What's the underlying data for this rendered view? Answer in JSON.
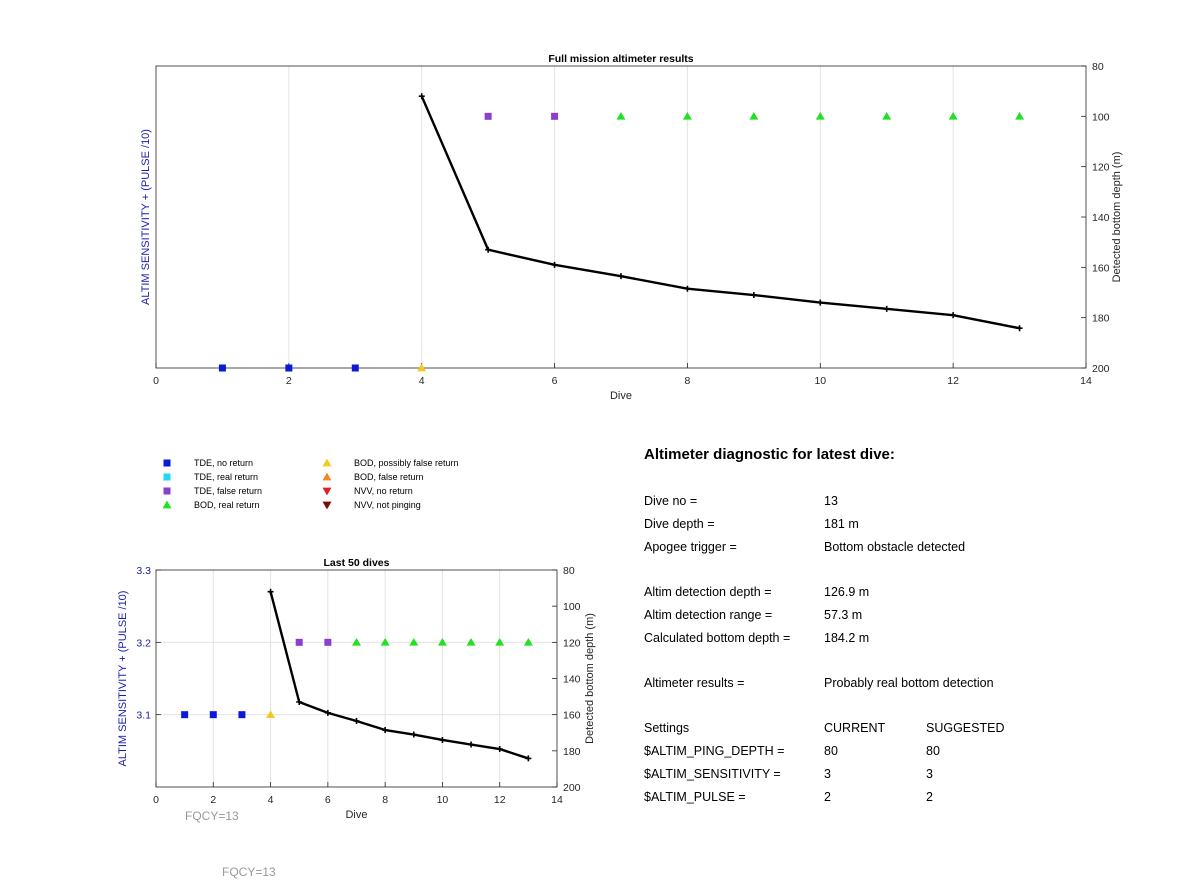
{
  "colors": {
    "tde_no_return": "#0a1ad6",
    "tde_real_return": "#22d8f0",
    "tde_false_return": "#8a3fd0",
    "bod_real_return": "#22e022",
    "bod_possibly_false": "#f4c81e",
    "bod_false_return": "#f08a1e",
    "nvv_no_return": "#e02020",
    "nvv_not_pinging": "#7a0a0a",
    "axis_left_label": "#1a1ab0",
    "line": "#000000"
  },
  "legend": [
    {
      "label": "TDE, no return",
      "shape": "square",
      "color_key": "tde_no_return"
    },
    {
      "label": "TDE, real return",
      "shape": "square",
      "color_key": "tde_real_return"
    },
    {
      "label": "TDE, false return",
      "shape": "square",
      "color_key": "tde_false_return"
    },
    {
      "label": "BOD, real return",
      "shape": "triangle-up",
      "color_key": "bod_real_return"
    },
    {
      "label": "BOD, possibly false return",
      "shape": "triangle-up",
      "color_key": "bod_possibly_false"
    },
    {
      "label": "BOD, false return",
      "shape": "triangle-up",
      "color_key": "bod_false_return"
    },
    {
      "label": "NVV, no return",
      "shape": "triangle-down",
      "color_key": "nvv_no_return"
    },
    {
      "label": "NVV, not pinging",
      "shape": "triangle-down",
      "color_key": "nvv_not_pinging"
    }
  ],
  "chart_data": [
    {
      "type": "line",
      "title": "Full mission altimeter results",
      "xlabel": "Dive",
      "ylabel_left": "ALTIM SENSITIVITY + (PULSE /10)",
      "ylabel_right": "Detected bottom depth (m)",
      "xlim": [
        0,
        14
      ],
      "xticks": [
        0,
        2,
        4,
        6,
        8,
        10,
        12,
        14
      ],
      "right_ylim": [
        80,
        200
      ],
      "right_y_reversed": true,
      "right_yticks": [
        80,
        100,
        120,
        140,
        160,
        180,
        200
      ],
      "left_yticks": [],
      "grid": "x",
      "depth_line": {
        "x": [
          4,
          5,
          6,
          7,
          8,
          9,
          10,
          11,
          12,
          13
        ],
        "y": [
          92,
          153,
          159,
          163.5,
          168.5,
          171,
          174,
          176.5,
          179,
          184.2
        ]
      },
      "status_markers": [
        {
          "x": 1,
          "depth": 200,
          "category": "tde_no_return"
        },
        {
          "x": 2,
          "depth": 200,
          "category": "tde_no_return"
        },
        {
          "x": 3,
          "depth": 200,
          "category": "tde_no_return"
        },
        {
          "x": 4,
          "depth": 200,
          "category": "bod_possibly_false"
        },
        {
          "x": 5,
          "depth": 100,
          "category": "tde_false_return"
        },
        {
          "x": 6,
          "depth": 100,
          "category": "tde_false_return"
        },
        {
          "x": 7,
          "depth": 100,
          "category": "bod_real_return"
        },
        {
          "x": 8,
          "depth": 100,
          "category": "bod_real_return"
        },
        {
          "x": 9,
          "depth": 100,
          "category": "bod_real_return"
        },
        {
          "x": 10,
          "depth": 100,
          "category": "bod_real_return"
        },
        {
          "x": 11,
          "depth": 100,
          "category": "bod_real_return"
        },
        {
          "x": 12,
          "depth": 100,
          "category": "bod_real_return"
        },
        {
          "x": 13,
          "depth": 100,
          "category": "bod_real_return"
        }
      ]
    },
    {
      "type": "line",
      "title": "Last 50 dives",
      "xlabel": "Dive",
      "ylabel_left": "ALTIM SENSITIVITY + (PULSE /10)",
      "ylabel_right": "Detected bottom depth (m)",
      "xlim": [
        0,
        14
      ],
      "xticks": [
        0,
        2,
        4,
        6,
        8,
        10,
        12,
        14
      ],
      "left_ylim": [
        3.0,
        3.3
      ],
      "left_yticks": [
        3.1,
        3.2,
        3.3
      ],
      "right_ylim": [
        80,
        200
      ],
      "right_y_reversed": true,
      "right_yticks": [
        80,
        100,
        120,
        140,
        160,
        180,
        200
      ],
      "grid": "both",
      "depth_line": {
        "x": [
          4,
          5,
          6,
          7,
          8,
          9,
          10,
          11,
          12,
          13
        ],
        "y": [
          92,
          153,
          159,
          163.5,
          168.5,
          171,
          174,
          176.5,
          179,
          184.2
        ]
      },
      "status_markers": [
        {
          "x": 1,
          "left_value": 3.1,
          "category": "tde_no_return"
        },
        {
          "x": 2,
          "left_value": 3.1,
          "category": "tde_no_return"
        },
        {
          "x": 3,
          "left_value": 3.1,
          "category": "tde_no_return"
        },
        {
          "x": 4,
          "left_value": 3.1,
          "category": "bod_possibly_false"
        },
        {
          "x": 5,
          "left_value": 3.2,
          "category": "tde_false_return"
        },
        {
          "x": 6,
          "left_value": 3.2,
          "category": "tde_false_return"
        },
        {
          "x": 7,
          "left_value": 3.2,
          "category": "bod_real_return"
        },
        {
          "x": 8,
          "left_value": 3.2,
          "category": "bod_real_return"
        },
        {
          "x": 9,
          "left_value": 3.2,
          "category": "bod_real_return"
        },
        {
          "x": 10,
          "left_value": 3.2,
          "category": "bod_real_return"
        },
        {
          "x": 11,
          "left_value": 3.2,
          "category": "bod_real_return"
        },
        {
          "x": 12,
          "left_value": 3.2,
          "category": "bod_real_return"
        },
        {
          "x": 13,
          "left_value": 3.2,
          "category": "bod_real_return"
        }
      ]
    }
  ],
  "diagnostic": {
    "title": "Altimeter diagnostic for latest dive:",
    "rows": [
      {
        "key": "Dive no =",
        "value": "13"
      },
      {
        "key": "Dive depth =",
        "value": "181 m"
      },
      {
        "key": "Apogee trigger =",
        "value": "Bottom obstacle detected"
      },
      {
        "key": "Altim detection depth =",
        "value": "126.9 m"
      },
      {
        "key": "Altim detection range =",
        "value": "57.3 m"
      },
      {
        "key": "Calculated bottom depth =",
        "value": "184.2 m"
      },
      {
        "key": "Altimeter results =",
        "value": "Probably real bottom detection"
      }
    ],
    "settings_header": {
      "key": "Settings",
      "current": "CURRENT",
      "suggested": "SUGGESTED"
    },
    "settings": [
      {
        "key": "$ALTIM_PING_DEPTH =",
        "current": "80",
        "suggested": "80"
      },
      {
        "key": "$ALTIM_SENSITIVITY =",
        "current": "3",
        "suggested": "3"
      },
      {
        "key": "$ALTIM_PULSE =",
        "current": "2",
        "suggested": "2"
      }
    ]
  },
  "fqcy_labels": [
    "FQCY=13",
    "FQCY=13"
  ]
}
